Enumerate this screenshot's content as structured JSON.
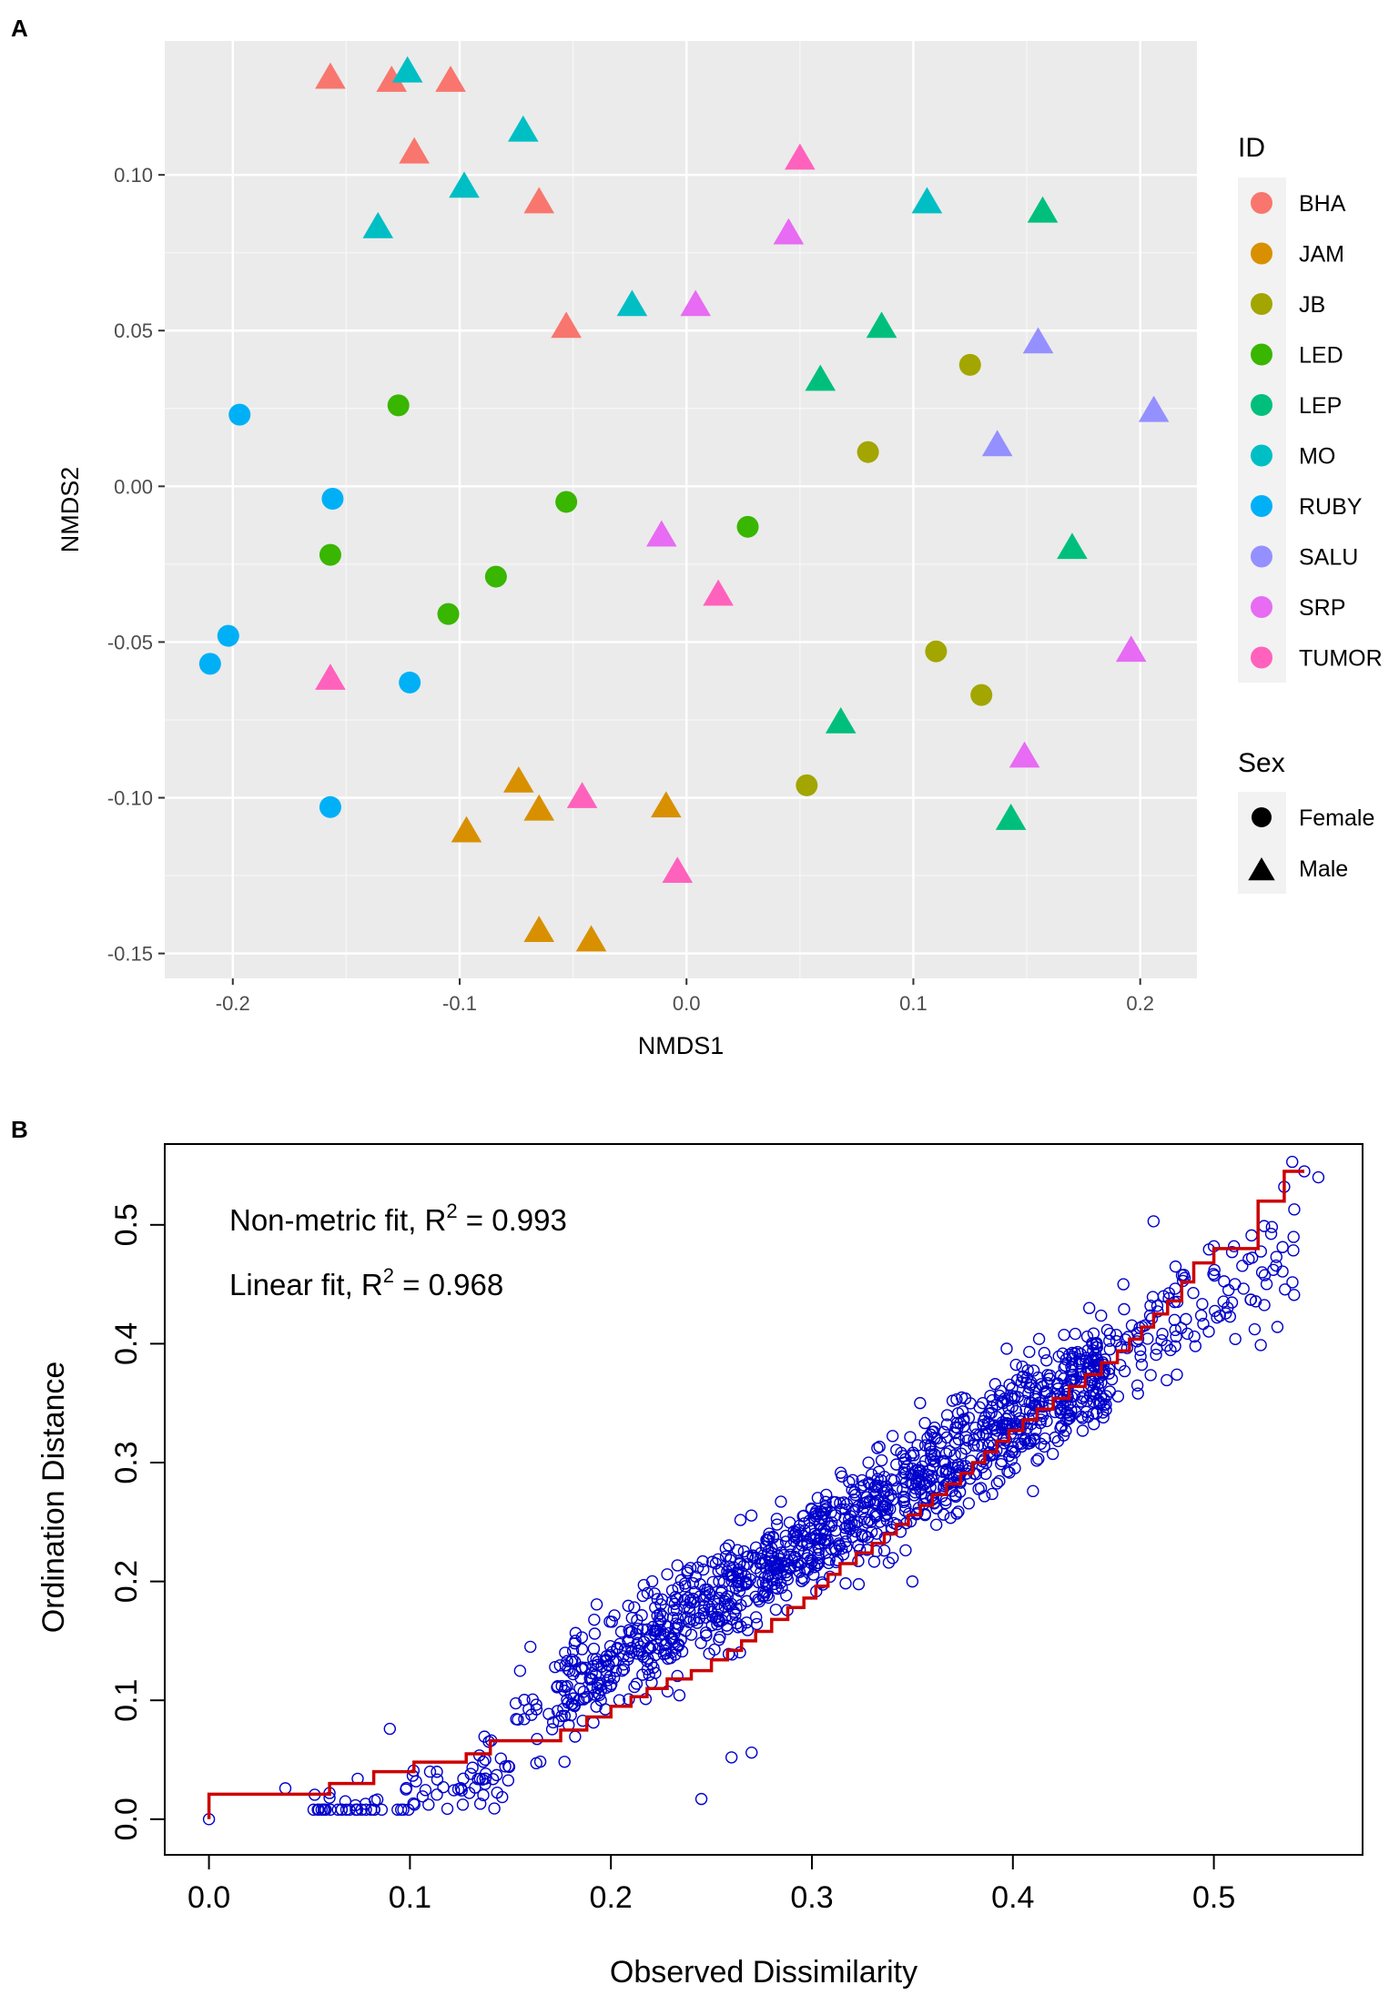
{
  "panel_labels": {
    "a": "A",
    "b": "B"
  },
  "chart_data": [
    {
      "type": "scatter",
      "title": "",
      "xlabel": "NMDS1",
      "ylabel": "NMDS2",
      "xlim": [
        -0.23,
        0.225
      ],
      "ylim": [
        -0.158,
        0.143
      ],
      "xticks": [
        -0.2,
        -0.1,
        0.0,
        0.1,
        0.2
      ],
      "xtick_labels": [
        "-0.2",
        "-0.1",
        "0.0",
        "0.1",
        "0.2"
      ],
      "yticks": [
        -0.15,
        -0.1,
        -0.05,
        0.0,
        0.05,
        0.1
      ],
      "ytick_labels": [
        "-0.15",
        "-0.10",
        "-0.05",
        "0.00",
        "0.05",
        "0.10"
      ],
      "grid": true,
      "legend_id_title": "ID",
      "legend_sex_title": "Sex",
      "groups": [
        {
          "id": "BHA",
          "color": "#F8766D"
        },
        {
          "id": "JAM",
          "color": "#D89000"
        },
        {
          "id": "JB",
          "color": "#A3A500"
        },
        {
          "id": "LED",
          "color": "#39B600"
        },
        {
          "id": "LEP",
          "color": "#00BF7D"
        },
        {
          "id": "MO",
          "color": "#00BFC4"
        },
        {
          "id": "RUBY",
          "color": "#00B0F6"
        },
        {
          "id": "SALU",
          "color": "#9590FF"
        },
        {
          "id": "SRP",
          "color": "#E76BF3"
        },
        {
          "id": "TUMOR",
          "color": "#FF62BC"
        }
      ],
      "sexes": [
        {
          "name": "Female",
          "shape": "circle"
        },
        {
          "name": "Male",
          "shape": "triangle"
        }
      ],
      "points": [
        {
          "id": "BHA",
          "sex": "Male",
          "x": -0.157,
          "y": 0.132
        },
        {
          "id": "BHA",
          "sex": "Male",
          "x": -0.13,
          "y": 0.131
        },
        {
          "id": "BHA",
          "sex": "Male",
          "x": -0.104,
          "y": 0.131
        },
        {
          "id": "BHA",
          "sex": "Male",
          "x": -0.12,
          "y": 0.108
        },
        {
          "id": "BHA",
          "sex": "Male",
          "x": -0.065,
          "y": 0.092
        },
        {
          "id": "BHA",
          "sex": "Male",
          "x": -0.053,
          "y": 0.052
        },
        {
          "id": "JAM",
          "sex": "Male",
          "x": -0.074,
          "y": -0.094
        },
        {
          "id": "JAM",
          "sex": "Male",
          "x": -0.097,
          "y": -0.11
        },
        {
          "id": "JAM",
          "sex": "Male",
          "x": -0.065,
          "y": -0.103
        },
        {
          "id": "JAM",
          "sex": "Male",
          "x": -0.009,
          "y": -0.102
        },
        {
          "id": "JAM",
          "sex": "Male",
          "x": -0.065,
          "y": -0.142
        },
        {
          "id": "JAM",
          "sex": "Male",
          "x": -0.042,
          "y": -0.145
        },
        {
          "id": "JB",
          "sex": "Female",
          "x": 0.125,
          "y": 0.039
        },
        {
          "id": "JB",
          "sex": "Female",
          "x": 0.08,
          "y": 0.011
        },
        {
          "id": "JB",
          "sex": "Female",
          "x": 0.11,
          "y": -0.053
        },
        {
          "id": "JB",
          "sex": "Female",
          "x": 0.13,
          "y": -0.067
        },
        {
          "id": "JB",
          "sex": "Female",
          "x": 0.053,
          "y": -0.096
        },
        {
          "id": "LED",
          "sex": "Female",
          "x": -0.127,
          "y": 0.026
        },
        {
          "id": "LED",
          "sex": "Female",
          "x": -0.053,
          "y": -0.005
        },
        {
          "id": "LED",
          "sex": "Female",
          "x": 0.027,
          "y": -0.013
        },
        {
          "id": "LED",
          "sex": "Female",
          "x": -0.157,
          "y": -0.022
        },
        {
          "id": "LED",
          "sex": "Female",
          "x": -0.084,
          "y": -0.029
        },
        {
          "id": "LED",
          "sex": "Female",
          "x": -0.105,
          "y": -0.041
        },
        {
          "id": "LEP",
          "sex": "Male",
          "x": 0.157,
          "y": 0.089
        },
        {
          "id": "LEP",
          "sex": "Male",
          "x": 0.086,
          "y": 0.052
        },
        {
          "id": "LEP",
          "sex": "Male",
          "x": 0.059,
          "y": 0.035
        },
        {
          "id": "LEP",
          "sex": "Male",
          "x": 0.17,
          "y": -0.019
        },
        {
          "id": "LEP",
          "sex": "Male",
          "x": 0.068,
          "y": -0.075
        },
        {
          "id": "LEP",
          "sex": "Male",
          "x": 0.143,
          "y": -0.106
        },
        {
          "id": "MO",
          "sex": "Male",
          "x": -0.123,
          "y": 0.134
        },
        {
          "id": "MO",
          "sex": "Male",
          "x": -0.072,
          "y": 0.115
        },
        {
          "id": "MO",
          "sex": "Male",
          "x": -0.098,
          "y": 0.097
        },
        {
          "id": "MO",
          "sex": "Male",
          "x": -0.136,
          "y": 0.084
        },
        {
          "id": "MO",
          "sex": "Male",
          "x": 0.106,
          "y": 0.092
        },
        {
          "id": "MO",
          "sex": "Male",
          "x": -0.024,
          "y": 0.059
        },
        {
          "id": "RUBY",
          "sex": "Female",
          "x": -0.197,
          "y": 0.023
        },
        {
          "id": "RUBY",
          "sex": "Female",
          "x": -0.156,
          "y": -0.004
        },
        {
          "id": "RUBY",
          "sex": "Female",
          "x": -0.202,
          "y": -0.048
        },
        {
          "id": "RUBY",
          "sex": "Female",
          "x": -0.21,
          "y": -0.057
        },
        {
          "id": "RUBY",
          "sex": "Female",
          "x": -0.122,
          "y": -0.063
        },
        {
          "id": "RUBY",
          "sex": "Female",
          "x": -0.157,
          "y": -0.103
        },
        {
          "id": "SALU",
          "sex": "Male",
          "x": 0.155,
          "y": 0.047
        },
        {
          "id": "SALU",
          "sex": "Male",
          "x": 0.206,
          "y": 0.025
        },
        {
          "id": "SALU",
          "sex": "Male",
          "x": 0.137,
          "y": 0.014
        },
        {
          "id": "SRP",
          "sex": "Male",
          "x": 0.045,
          "y": 0.082
        },
        {
          "id": "SRP",
          "sex": "Male",
          "x": 0.004,
          "y": 0.059
        },
        {
          "id": "SRP",
          "sex": "Male",
          "x": -0.011,
          "y": -0.015
        },
        {
          "id": "SRP",
          "sex": "Male",
          "x": 0.196,
          "y": -0.052
        },
        {
          "id": "SRP",
          "sex": "Male",
          "x": 0.149,
          "y": -0.086
        },
        {
          "id": "TUMOR",
          "sex": "Male",
          "x": 0.05,
          "y": 0.106
        },
        {
          "id": "TUMOR",
          "sex": "Male",
          "x": 0.014,
          "y": -0.034
        },
        {
          "id": "TUMOR",
          "sex": "Male",
          "x": -0.157,
          "y": -0.061
        },
        {
          "id": "TUMOR",
          "sex": "Male",
          "x": -0.046,
          "y": -0.099
        },
        {
          "id": "TUMOR",
          "sex": "Male",
          "x": -0.004,
          "y": -0.123
        }
      ]
    },
    {
      "type": "scatter",
      "subtype": "shepard",
      "title": "",
      "xlabel": "Observed Dissimilarity",
      "ylabel": "Ordination Distance",
      "xlim": [
        -0.022,
        0.574
      ],
      "ylim": [
        -0.03,
        0.568
      ],
      "xticks": [
        0.0,
        0.1,
        0.2,
        0.3,
        0.4,
        0.5
      ],
      "xtick_labels": [
        "0.0",
        "0.1",
        "0.2",
        "0.3",
        "0.4",
        "0.5"
      ],
      "yticks": [
        0.0,
        0.1,
        0.2,
        0.3,
        0.4,
        0.5
      ],
      "ytick_labels": [
        "0.0",
        "0.1",
        "0.2",
        "0.3",
        "0.4",
        "0.5"
      ],
      "annotations": [
        {
          "prefix": "Non-metric fit, R",
          "exponent": "2",
          "suffix": " = 0.993"
        },
        {
          "prefix": "Linear fit, R",
          "exponent": "2",
          "suffix": " = 0.968"
        }
      ],
      "point_color": "#0000CC",
      "line_color": "#CC0000",
      "n_points": 1431,
      "point_model": "y ≈ 1.008·x − 0.0006·x² − 0.0695 (lower arm near 0.018–0.05 for x < 0.15), residual sd ≈ 0.022",
      "point_x_range": [
        0.0,
        0.552
      ],
      "anchor_points": [
        {
          "x": 0.0,
          "y": 0.0
        },
        {
          "x": 0.038,
          "y": 0.026
        },
        {
          "x": 0.06,
          "y": 0.018
        },
        {
          "x": 0.06,
          "y": 0.022
        },
        {
          "x": 0.074,
          "y": 0.034
        },
        {
          "x": 0.09,
          "y": 0.076
        },
        {
          "x": 0.098,
          "y": 0.025
        },
        {
          "x": 0.11,
          "y": 0.04
        },
        {
          "x": 0.135,
          "y": 0.013
        },
        {
          "x": 0.142,
          "y": 0.009
        },
        {
          "x": 0.195,
          "y": 0.1
        },
        {
          "x": 0.222,
          "y": 0.178
        },
        {
          "x": 0.237,
          "y": 0.196
        },
        {
          "x": 0.245,
          "y": 0.017
        },
        {
          "x": 0.26,
          "y": 0.052
        },
        {
          "x": 0.27,
          "y": 0.056
        },
        {
          "x": 0.298,
          "y": 0.222
        },
        {
          "x": 0.35,
          "y": 0.2
        },
        {
          "x": 0.37,
          "y": 0.352
        },
        {
          "x": 0.385,
          "y": 0.35
        },
        {
          "x": 0.4,
          "y": 0.313
        },
        {
          "x": 0.41,
          "y": 0.276
        },
        {
          "x": 0.438,
          "y": 0.43
        },
        {
          "x": 0.445,
          "y": 0.338
        },
        {
          "x": 0.455,
          "y": 0.45
        },
        {
          "x": 0.47,
          "y": 0.503
        },
        {
          "x": 0.475,
          "y": 0.44
        },
        {
          "x": 0.485,
          "y": 0.458
        },
        {
          "x": 0.5,
          "y": 0.482
        },
        {
          "x": 0.51,
          "y": 0.482
        },
        {
          "x": 0.525,
          "y": 0.499
        },
        {
          "x": 0.535,
          "y": 0.532
        },
        {
          "x": 0.539,
          "y": 0.553
        },
        {
          "x": 0.54,
          "y": 0.513
        },
        {
          "x": 0.545,
          "y": 0.545
        },
        {
          "x": 0.552,
          "y": 0.54
        }
      ],
      "step_line": [
        [
          0.0,
          0.0
        ],
        [
          0.0,
          0.021
        ],
        [
          0.06,
          0.021
        ],
        [
          0.06,
          0.03
        ],
        [
          0.082,
          0.03
        ],
        [
          0.082,
          0.04
        ],
        [
          0.102,
          0.04
        ],
        [
          0.102,
          0.048
        ],
        [
          0.128,
          0.048
        ],
        [
          0.128,
          0.055
        ],
        [
          0.14,
          0.055
        ],
        [
          0.14,
          0.066
        ],
        [
          0.175,
          0.066
        ],
        [
          0.175,
          0.075
        ],
        [
          0.188,
          0.075
        ],
        [
          0.188,
          0.086
        ],
        [
          0.2,
          0.086
        ],
        [
          0.2,
          0.095
        ],
        [
          0.21,
          0.095
        ],
        [
          0.21,
          0.103
        ],
        [
          0.218,
          0.103
        ],
        [
          0.218,
          0.11
        ],
        [
          0.228,
          0.11
        ],
        [
          0.228,
          0.118
        ],
        [
          0.24,
          0.118
        ],
        [
          0.24,
          0.125
        ],
        [
          0.25,
          0.125
        ],
        [
          0.25,
          0.134
        ],
        [
          0.258,
          0.134
        ],
        [
          0.258,
          0.142
        ],
        [
          0.265,
          0.142
        ],
        [
          0.265,
          0.15
        ],
        [
          0.272,
          0.15
        ],
        [
          0.272,
          0.158
        ],
        [
          0.28,
          0.158
        ],
        [
          0.28,
          0.168
        ],
        [
          0.288,
          0.168
        ],
        [
          0.288,
          0.178
        ],
        [
          0.296,
          0.178
        ],
        [
          0.296,
          0.186
        ],
        [
          0.302,
          0.186
        ],
        [
          0.302,
          0.196
        ],
        [
          0.308,
          0.196
        ],
        [
          0.308,
          0.206
        ],
        [
          0.314,
          0.206
        ],
        [
          0.314,
          0.215
        ],
        [
          0.322,
          0.215
        ],
        [
          0.322,
          0.224
        ],
        [
          0.33,
          0.224
        ],
        [
          0.33,
          0.232
        ],
        [
          0.336,
          0.232
        ],
        [
          0.336,
          0.24
        ],
        [
          0.342,
          0.24
        ],
        [
          0.342,
          0.248
        ],
        [
          0.348,
          0.248
        ],
        [
          0.348,
          0.256
        ],
        [
          0.354,
          0.256
        ],
        [
          0.354,
          0.264
        ],
        [
          0.36,
          0.264
        ],
        [
          0.36,
          0.273
        ],
        [
          0.367,
          0.273
        ],
        [
          0.367,
          0.282
        ],
        [
          0.374,
          0.282
        ],
        [
          0.374,
          0.291
        ],
        [
          0.38,
          0.291
        ],
        [
          0.38,
          0.3
        ],
        [
          0.386,
          0.3
        ],
        [
          0.386,
          0.309
        ],
        [
          0.392,
          0.309
        ],
        [
          0.392,
          0.318
        ],
        [
          0.398,
          0.318
        ],
        [
          0.398,
          0.327
        ],
        [
          0.405,
          0.327
        ],
        [
          0.405,
          0.336
        ],
        [
          0.412,
          0.336
        ],
        [
          0.412,
          0.345
        ],
        [
          0.42,
          0.345
        ],
        [
          0.42,
          0.354
        ],
        [
          0.428,
          0.354
        ],
        [
          0.428,
          0.364
        ],
        [
          0.436,
          0.364
        ],
        [
          0.436,
          0.374
        ],
        [
          0.444,
          0.374
        ],
        [
          0.444,
          0.384
        ],
        [
          0.452,
          0.384
        ],
        [
          0.452,
          0.394
        ],
        [
          0.458,
          0.394
        ],
        [
          0.458,
          0.404
        ],
        [
          0.464,
          0.404
        ],
        [
          0.464,
          0.414
        ],
        [
          0.47,
          0.414
        ],
        [
          0.47,
          0.425
        ],
        [
          0.477,
          0.425
        ],
        [
          0.477,
          0.436
        ],
        [
          0.484,
          0.436
        ],
        [
          0.484,
          0.452
        ],
        [
          0.49,
          0.452
        ],
        [
          0.49,
          0.468
        ],
        [
          0.5,
          0.468
        ],
        [
          0.5,
          0.48
        ],
        [
          0.522,
          0.48
        ],
        [
          0.522,
          0.52
        ],
        [
          0.535,
          0.52
        ],
        [
          0.535,
          0.545
        ],
        [
          0.545,
          0.545
        ]
      ]
    }
  ]
}
